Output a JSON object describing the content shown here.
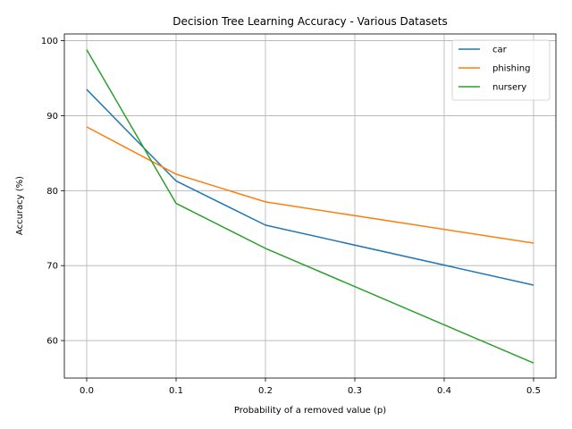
{
  "chart_data": {
    "type": "line",
    "title": "Decision Tree Learning Accuracy - Various Datasets",
    "xlabel": "Probability of a removed value (p)",
    "ylabel": "Accuracy (%)",
    "x": [
      0.0,
      0.1,
      0.2,
      0.5
    ],
    "xlim": [
      -0.025,
      0.525
    ],
    "ylim": [
      55.0,
      100.9
    ],
    "xticks": [
      0.0,
      0.1,
      0.2,
      0.3,
      0.4,
      0.5
    ],
    "xtick_labels": [
      "0.0",
      "0.1",
      "0.2",
      "0.3",
      "0.4",
      "0.5"
    ],
    "yticks": [
      60,
      70,
      80,
      90,
      100
    ],
    "ytick_labels": [
      "60",
      "70",
      "80",
      "90",
      "100"
    ],
    "grid": true,
    "legend_position": "top-right",
    "series": [
      {
        "name": "car",
        "color": "#1f77b4",
        "values": [
          93.5,
          81.3,
          75.4,
          67.4
        ]
      },
      {
        "name": "phishing",
        "color": "#ff7f0e",
        "values": [
          88.5,
          82.2,
          78.5,
          73.0
        ]
      },
      {
        "name": "nursery",
        "color": "#2ca02c",
        "values": [
          98.8,
          78.3,
          72.3,
          57.0
        ]
      }
    ]
  }
}
